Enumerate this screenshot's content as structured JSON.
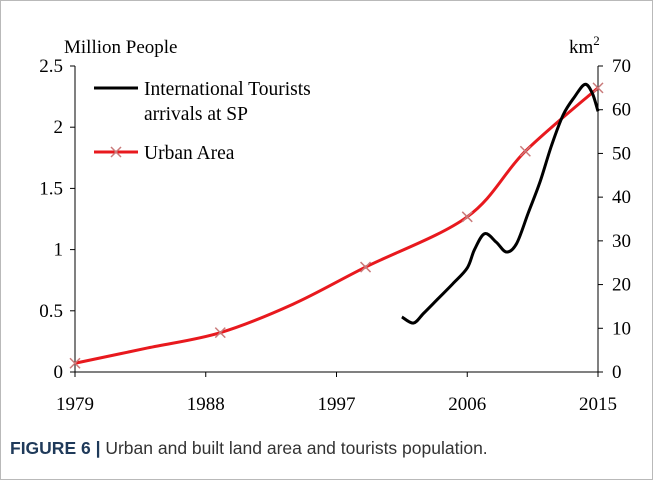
{
  "chart_data": {
    "type": "line",
    "x_ticks": [
      1979,
      1988,
      1997,
      2006,
      2015
    ],
    "xlim": [
      1979,
      2015
    ],
    "y_left": {
      "label": "Million People",
      "ylim": [
        0,
        2.5
      ],
      "ticks": [
        "0",
        "0.5",
        "1",
        "1.5",
        "2",
        "2.5"
      ],
      "tick_values": [
        0,
        0.5,
        1,
        1.5,
        2,
        2.5
      ]
    },
    "y_right": {
      "label_base": "km",
      "label_sup": "2",
      "ylim": [
        0,
        70
      ],
      "ticks": [
        "0",
        "10",
        "20",
        "30",
        "40",
        "50",
        "60",
        "70"
      ],
      "tick_values": [
        0,
        10,
        20,
        30,
        40,
        50,
        60,
        70
      ]
    },
    "grid": false,
    "legend_position": "top-left",
    "series": [
      {
        "name_line1": "International Tourists",
        "name_line2": "arrivals at SP",
        "color": "#000000",
        "axis": "left",
        "marker": "none",
        "x": [
          2001.5,
          2002.3,
          2003.0,
          2004.0,
          2005.0,
          2006.0,
          2006.5,
          2007.2,
          2008.0,
          2008.7,
          2009.4,
          2010.2,
          2011.0,
          2011.8,
          2012.6,
          2013.4,
          2014.1,
          2014.6,
          2015.0
        ],
        "y": [
          0.45,
          0.4,
          0.48,
          0.6,
          0.72,
          0.85,
          1.0,
          1.13,
          1.06,
          0.98,
          1.05,
          1.3,
          1.55,
          1.85,
          2.1,
          2.25,
          2.35,
          2.28,
          2.13
        ]
      },
      {
        "name": "Urban Area",
        "color": "#e8191e",
        "marker_color": "#c97a7a",
        "axis": "right",
        "marker": "x",
        "x": [
          1979,
          1984,
          1989,
          1994,
          1999,
          2006,
          2010,
          2015
        ],
        "y": [
          2.0,
          5.5,
          9.0,
          15.5,
          24.0,
          35.5,
          50.5,
          65.0
        ],
        "marker_x": [
          1979,
          1989,
          1999,
          2006,
          2010,
          2015
        ]
      }
    ]
  },
  "caption": {
    "label": "FIGURE 6 |",
    "text": " Urban and built land area and tourists population."
  }
}
